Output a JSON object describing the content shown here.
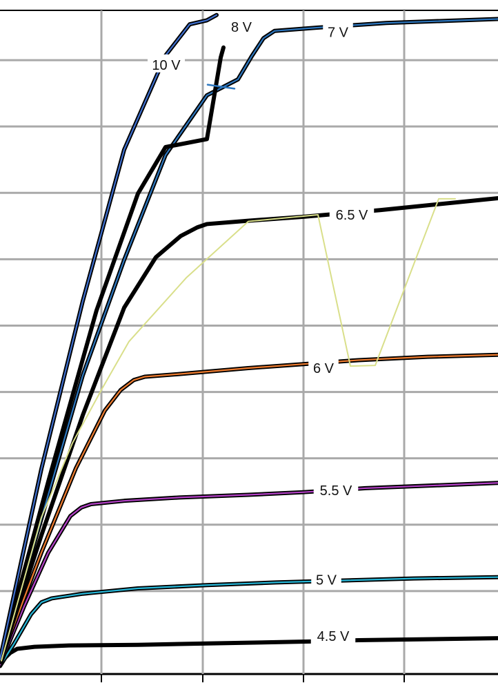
{
  "chart_data": {
    "type": "line",
    "title": "",
    "xlabel": "",
    "ylabel": "",
    "xlim": [
      0,
      722
    ],
    "ylim": [
      0,
      1
    ],
    "grid": true,
    "gridlines_x": [
      147,
      294,
      440,
      586
    ],
    "gridlines_y": [
      0.125,
      0.225,
      0.325,
      0.425,
      0.525,
      0.625,
      0.725,
      0.825,
      0.925
    ],
    "series": [
      {
        "name": "4.5 V",
        "color": "#000000",
        "overlay_color": "",
        "points": [
          [
            0,
            0.018
          ],
          [
            8,
            0.025
          ],
          [
            15,
            0.032
          ],
          [
            25,
            0.038
          ],
          [
            50,
            0.041
          ],
          [
            100,
            0.043
          ],
          [
            200,
            0.044
          ],
          [
            300,
            0.046
          ],
          [
            400,
            0.048
          ],
          [
            450,
            0.049
          ],
          [
            520,
            0.051
          ],
          [
            722,
            0.054
          ]
        ],
        "label": "4.5 V",
        "label_value": [
          483,
          0.057
        ]
      },
      {
        "name": "5 V",
        "color": "#000000",
        "overlay_color": "#27b8d9",
        "points": [
          [
            0,
            0.012
          ],
          [
            20,
            0.045
          ],
          [
            45,
            0.09
          ],
          [
            60,
            0.108
          ],
          [
            75,
            0.114
          ],
          [
            120,
            0.121
          ],
          [
            200,
            0.129
          ],
          [
            300,
            0.134
          ],
          [
            400,
            0.138
          ],
          [
            500,
            0.141
          ],
          [
            600,
            0.144
          ],
          [
            722,
            0.146
          ]
        ],
        "label": "5 V",
        "label_value": [
          473,
          0.142
        ]
      },
      {
        "name": "5.5 V",
        "color": "#000000",
        "overlay_color": "#b441c7",
        "points": [
          [
            0,
            0.014
          ],
          [
            35,
            0.102
          ],
          [
            70,
            0.183
          ],
          [
            102,
            0.238
          ],
          [
            118,
            0.251
          ],
          [
            132,
            0.256
          ],
          [
            180,
            0.261
          ],
          [
            260,
            0.266
          ],
          [
            360,
            0.27
          ],
          [
            440,
            0.274
          ],
          [
            530,
            0.28
          ],
          [
            722,
            0.288
          ]
        ],
        "label": "5.5 V",
        "label_value": [
          487,
          0.277
        ]
      },
      {
        "name": "6 V",
        "color": "#000000",
        "overlay_color": "#ef7c2f",
        "points": [
          [
            0,
            0.018
          ],
          [
            60,
            0.183
          ],
          [
            110,
            0.31
          ],
          [
            152,
            0.397
          ],
          [
            175,
            0.428
          ],
          [
            194,
            0.443
          ],
          [
            210,
            0.448
          ],
          [
            260,
            0.452
          ],
          [
            360,
            0.461
          ],
          [
            440,
            0.467
          ],
          [
            520,
            0.473
          ],
          [
            620,
            0.478
          ],
          [
            722,
            0.481
          ]
        ],
        "label": "6 V",
        "label_value": [
          469,
          0.461
        ]
      },
      {
        "name": "6.5 V",
        "color": "#000000",
        "overlay_color": "",
        "points": [
          [
            0,
            0.018
          ],
          [
            60,
            0.209
          ],
          [
            120,
            0.39
          ],
          [
            180,
            0.552
          ],
          [
            226,
            0.628
          ],
          [
            262,
            0.66
          ],
          [
            286,
            0.673
          ],
          [
            300,
            0.678
          ],
          [
            360,
            0.683
          ],
          [
            440,
            0.689
          ],
          [
            551,
            0.699
          ],
          [
            722,
            0.717
          ]
        ],
        "label": "6.5 V",
        "label_value": [
          510,
          0.692
        ]
      },
      {
        "name": "7 V",
        "color": "#000000",
        "overlay_color": "#2d77bf",
        "points": [
          [
            0,
            0.018
          ],
          [
            60,
            0.234
          ],
          [
            120,
            0.45
          ],
          [
            180,
            0.624
          ],
          [
            240,
            0.782
          ],
          [
            300,
            0.872
          ],
          [
            345,
            0.896
          ],
          [
            365,
            0.931
          ],
          [
            382,
            0.958
          ],
          [
            398,
            0.969
          ],
          [
            460,
            0.974
          ],
          [
            560,
            0.981
          ],
          [
            722,
            0.987
          ]
        ],
        "label": "7 V",
        "label_value": [
          490,
          0.967
        ]
      },
      {
        "name": "8 V",
        "color": "#000000",
        "overlay_color": "",
        "points": [
          [
            0,
            0.02
          ],
          [
            70,
            0.29
          ],
          [
            140,
            0.548
          ],
          [
            200,
            0.724
          ],
          [
            240,
            0.794
          ],
          [
            300,
            0.806
          ],
          [
            320,
            0.929
          ],
          [
            324,
            0.944
          ]
        ],
        "label": "8 V",
        "label_value": [
          350,
          0.975
        ]
      },
      {
        "name": "10 V",
        "color": "#000000",
        "overlay_color": "#3e6fcf",
        "points": [
          [
            0,
            0.022
          ],
          [
            60,
            0.309
          ],
          [
            120,
            0.562
          ],
          [
            180,
            0.79
          ],
          [
            240,
            0.932
          ],
          [
            275,
            0.979
          ],
          [
            300,
            0.985
          ],
          [
            314,
            0.993
          ]
        ],
        "label": "10 V",
        "label_value": [
          241,
          0.918
        ]
      },
      {
        "name": "",
        "color": "#2d77bf",
        "overlay_color": "",
        "points": [
          [
            301,
            0.888
          ],
          [
            340,
            0.882
          ]
        ],
        "label": "",
        "label_value": [
          0,
          0
        ]
      },
      {
        "name": "",
        "color": "#d9df8a",
        "overlay_color": "",
        "points": [
          [
            2,
            0.02
          ],
          [
            60,
            0.236
          ],
          [
            105,
            0.348
          ],
          [
            148,
            0.43
          ],
          [
            187,
            0.501
          ],
          [
            270,
            0.597
          ],
          [
            360,
            0.682
          ],
          [
            461,
            0.692
          ],
          [
            508,
            0.464
          ],
          [
            544,
            0.465
          ],
          [
            636,
            0.716
          ],
          [
            660,
            0.716
          ]
        ],
        "label": "",
        "label_value": [
          0,
          0
        ]
      }
    ]
  }
}
